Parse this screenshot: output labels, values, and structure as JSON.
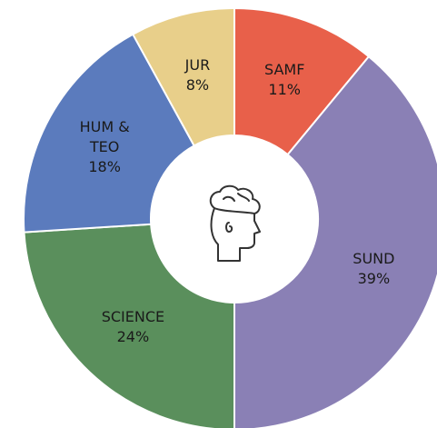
{
  "chart_data": {
    "type": "donut",
    "categories": [
      "SAMF",
      "SUND",
      "SCIENCE",
      "HUM & TEO",
      "JUR"
    ],
    "values": [
      11,
      39,
      24,
      18,
      8
    ],
    "value_labels": [
      "11%",
      "39%",
      "24%",
      "18%",
      "8%"
    ],
    "colors": [
      "#e8604a",
      "#8a80b5",
      "#5a8f5c",
      "#5b7bbd",
      "#e8cf8a"
    ]
  }
}
